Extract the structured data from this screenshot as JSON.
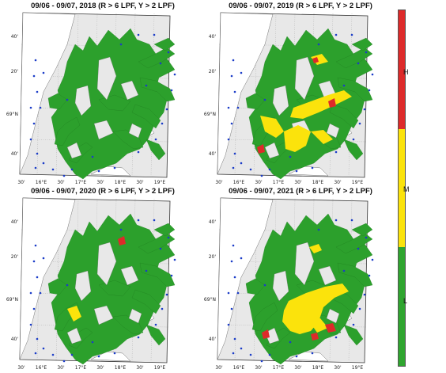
{
  "panels": [
    {
      "id": "p2018",
      "title": "09/06 - 09/07, 2018 (R > 6 LPF, Y > 2 LPF)",
      "variant": "low"
    },
    {
      "id": "p2019",
      "title": "09/06 - 09/07, 2019 (R > 6 LPF, Y > 2 LPF)",
      "variant": "medium"
    },
    {
      "id": "p2020",
      "title": "09/06 - 09/07, 2020 (R > 6 LPF, Y > 2 LPF)",
      "variant": "slight"
    },
    {
      "id": "p2021",
      "title": "09/06 - 09/07, 2021 (R > 6 LPF, Y > 2 LPF)",
      "variant": "high"
    }
  ],
  "lat_ticks": [
    "40'",
    "20'",
    "69°N",
    "40'"
  ],
  "lon_ticks": [
    "30'",
    "16°E",
    "30'",
    "17°E",
    "30'",
    "18°E",
    "30'",
    "19°E"
  ],
  "colorbar": {
    "segments": [
      {
        "label": "H",
        "color": "#dd2a2a"
      },
      {
        "label": "M",
        "color": "#fbe30c"
      },
      {
        "label": "L",
        "color": "#2fa52f"
      }
    ]
  },
  "colors": {
    "water": "#2ca02c",
    "land": "#e8e8e8",
    "medium": "#fbe30c",
    "high": "#dd2a2a",
    "station": "#1b3cc8"
  }
}
